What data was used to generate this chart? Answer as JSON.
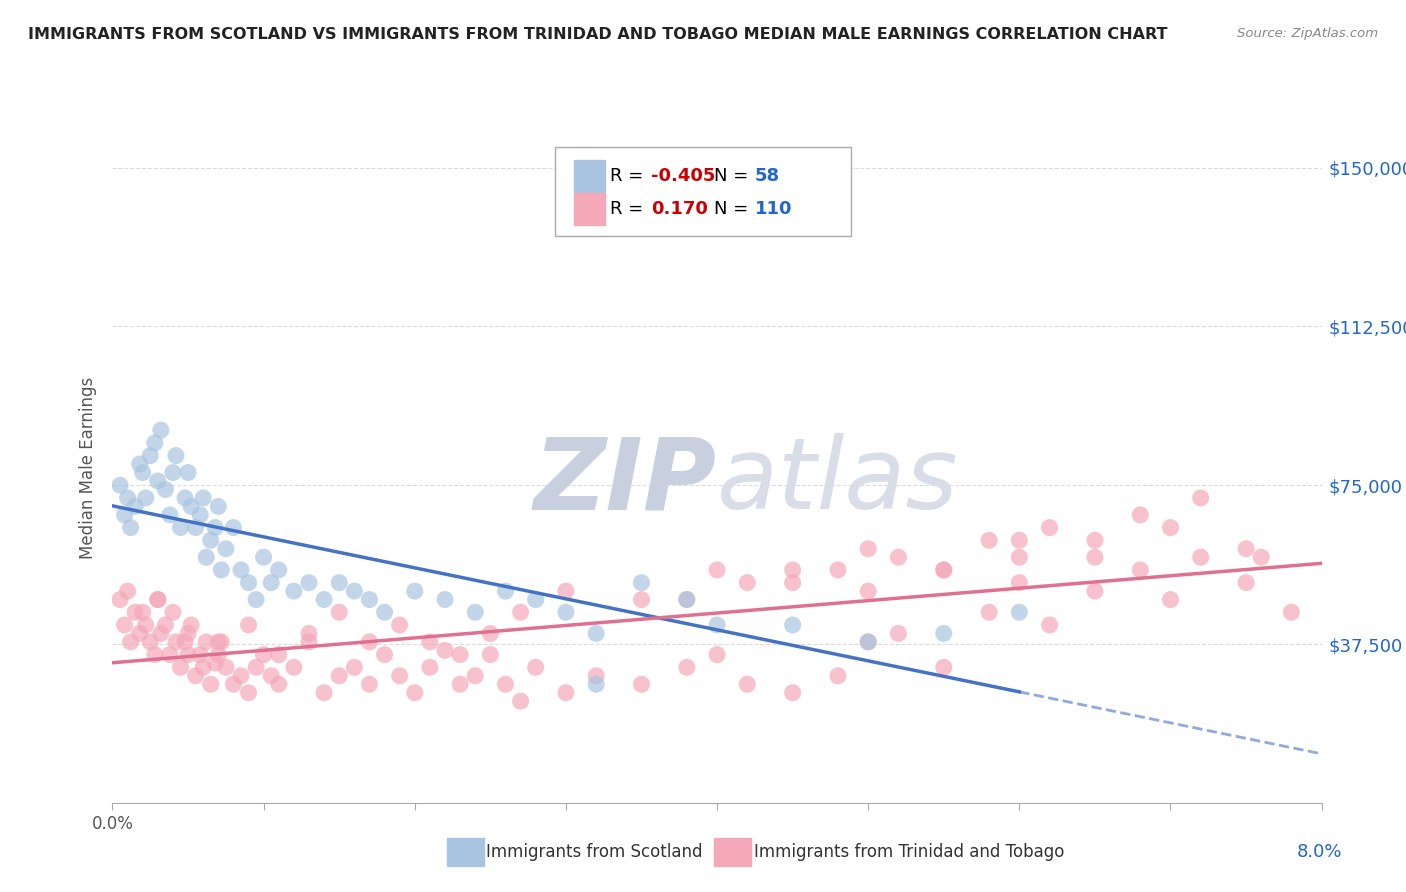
{
  "title": "IMMIGRANTS FROM SCOTLAND VS IMMIGRANTS FROM TRINIDAD AND TOBAGO MEDIAN MALE EARNINGS CORRELATION CHART",
  "source": "Source: ZipAtlas.com",
  "ylabel": "Median Male Earnings",
  "yticks": [
    0,
    37500,
    75000,
    112500,
    150000
  ],
  "ytick_labels": [
    "",
    "$37,500",
    "$75,000",
    "$112,500",
    "$150,000"
  ],
  "xmin": 0.0,
  "xmax": 8.0,
  "ymin": 18000,
  "ymax": 158000,
  "scotland_R": -0.405,
  "scotland_N": 58,
  "trinidad_R": 0.17,
  "trinidad_N": 110,
  "scotland_color": "#a8c4e0",
  "trinidad_color": "#f4a8b8",
  "scotland_line_color": "#4472c4",
  "trinidad_line_color": "#e07090",
  "background_color": "#ffffff",
  "grid_color": "#cccccc",
  "watermark_color": "#cdd5e8",
  "title_color": "#222222",
  "legend_R_color": "#cc0000",
  "legend_N_color": "#2266cc",
  "scotland_x": [
    0.05,
    0.08,
    0.1,
    0.12,
    0.15,
    0.18,
    0.2,
    0.22,
    0.25,
    0.28,
    0.3,
    0.32,
    0.35,
    0.38,
    0.4,
    0.42,
    0.45,
    0.48,
    0.5,
    0.52,
    0.55,
    0.58,
    0.6,
    0.62,
    0.65,
    0.68,
    0.7,
    0.72,
    0.75,
    0.8,
    0.85,
    0.9,
    0.95,
    1.0,
    1.05,
    1.1,
    1.2,
    1.3,
    1.4,
    1.5,
    1.6,
    1.7,
    1.8,
    2.0,
    2.2,
    2.4,
    2.6,
    2.8,
    3.0,
    3.2,
    3.5,
    3.8,
    4.0,
    4.5,
    5.0,
    5.5,
    6.0,
    3.2
  ],
  "scotland_y": [
    75000,
    68000,
    72000,
    65000,
    70000,
    80000,
    78000,
    72000,
    82000,
    85000,
    76000,
    88000,
    74000,
    68000,
    78000,
    82000,
    65000,
    72000,
    78000,
    70000,
    65000,
    68000,
    72000,
    58000,
    62000,
    65000,
    70000,
    55000,
    60000,
    65000,
    55000,
    52000,
    48000,
    58000,
    52000,
    55000,
    50000,
    52000,
    48000,
    52000,
    50000,
    48000,
    45000,
    50000,
    48000,
    45000,
    50000,
    48000,
    45000,
    40000,
    52000,
    48000,
    42000,
    42000,
    38000,
    40000,
    45000,
    28000
  ],
  "trinidad_x": [
    0.05,
    0.08,
    0.1,
    0.12,
    0.15,
    0.18,
    0.2,
    0.22,
    0.25,
    0.28,
    0.3,
    0.32,
    0.35,
    0.38,
    0.4,
    0.42,
    0.45,
    0.48,
    0.5,
    0.52,
    0.55,
    0.58,
    0.6,
    0.62,
    0.65,
    0.68,
    0.7,
    0.72,
    0.75,
    0.8,
    0.85,
    0.9,
    0.95,
    1.0,
    1.05,
    1.1,
    1.2,
    1.3,
    1.4,
    1.5,
    1.6,
    1.7,
    1.8,
    1.9,
    2.0,
    2.1,
    2.2,
    2.3,
    2.4,
    2.5,
    2.6,
    2.7,
    2.8,
    3.0,
    3.2,
    3.5,
    3.8,
    4.0,
    4.2,
    4.5,
    4.8,
    5.0,
    5.2,
    5.5,
    5.8,
    6.0,
    6.2,
    6.5,
    6.8,
    7.0,
    7.2,
    7.5,
    7.8,
    0.3,
    0.5,
    0.7,
    0.9,
    1.1,
    1.3,
    1.5,
    1.7,
    1.9,
    2.1,
    2.3,
    2.5,
    2.7,
    3.0,
    3.5,
    4.0,
    4.5,
    5.0,
    5.5,
    6.0,
    6.5,
    7.0,
    7.5,
    3.8,
    4.2,
    4.8,
    5.2,
    5.8,
    6.2,
    6.8,
    7.2,
    7.6,
    4.5,
    5.0,
    5.5,
    6.0,
    6.5
  ],
  "trinidad_y": [
    48000,
    42000,
    50000,
    38000,
    45000,
    40000,
    45000,
    42000,
    38000,
    35000,
    48000,
    40000,
    42000,
    35000,
    45000,
    38000,
    32000,
    38000,
    35000,
    42000,
    30000,
    35000,
    32000,
    38000,
    28000,
    33000,
    35000,
    38000,
    32000,
    28000,
    30000,
    26000,
    32000,
    35000,
    30000,
    28000,
    32000,
    38000,
    26000,
    30000,
    32000,
    28000,
    35000,
    30000,
    26000,
    32000,
    36000,
    28000,
    30000,
    35000,
    28000,
    24000,
    32000,
    26000,
    30000,
    28000,
    32000,
    35000,
    28000,
    26000,
    30000,
    38000,
    40000,
    32000,
    45000,
    52000,
    42000,
    50000,
    55000,
    48000,
    58000,
    52000,
    45000,
    48000,
    40000,
    38000,
    42000,
    35000,
    40000,
    45000,
    38000,
    42000,
    38000,
    35000,
    40000,
    45000,
    50000,
    48000,
    55000,
    52000,
    60000,
    55000,
    62000,
    58000,
    65000,
    60000,
    48000,
    52000,
    55000,
    58000,
    62000,
    65000,
    68000,
    72000,
    58000,
    55000,
    50000,
    55000,
    58000,
    62000
  ],
  "scotland_x_max_data": 6.0,
  "trinidad_line_start_x": 0.0,
  "trinidad_line_end_x": 8.0,
  "scotland_line_start_x": 0.0,
  "scotland_line_end_x": 8.0
}
